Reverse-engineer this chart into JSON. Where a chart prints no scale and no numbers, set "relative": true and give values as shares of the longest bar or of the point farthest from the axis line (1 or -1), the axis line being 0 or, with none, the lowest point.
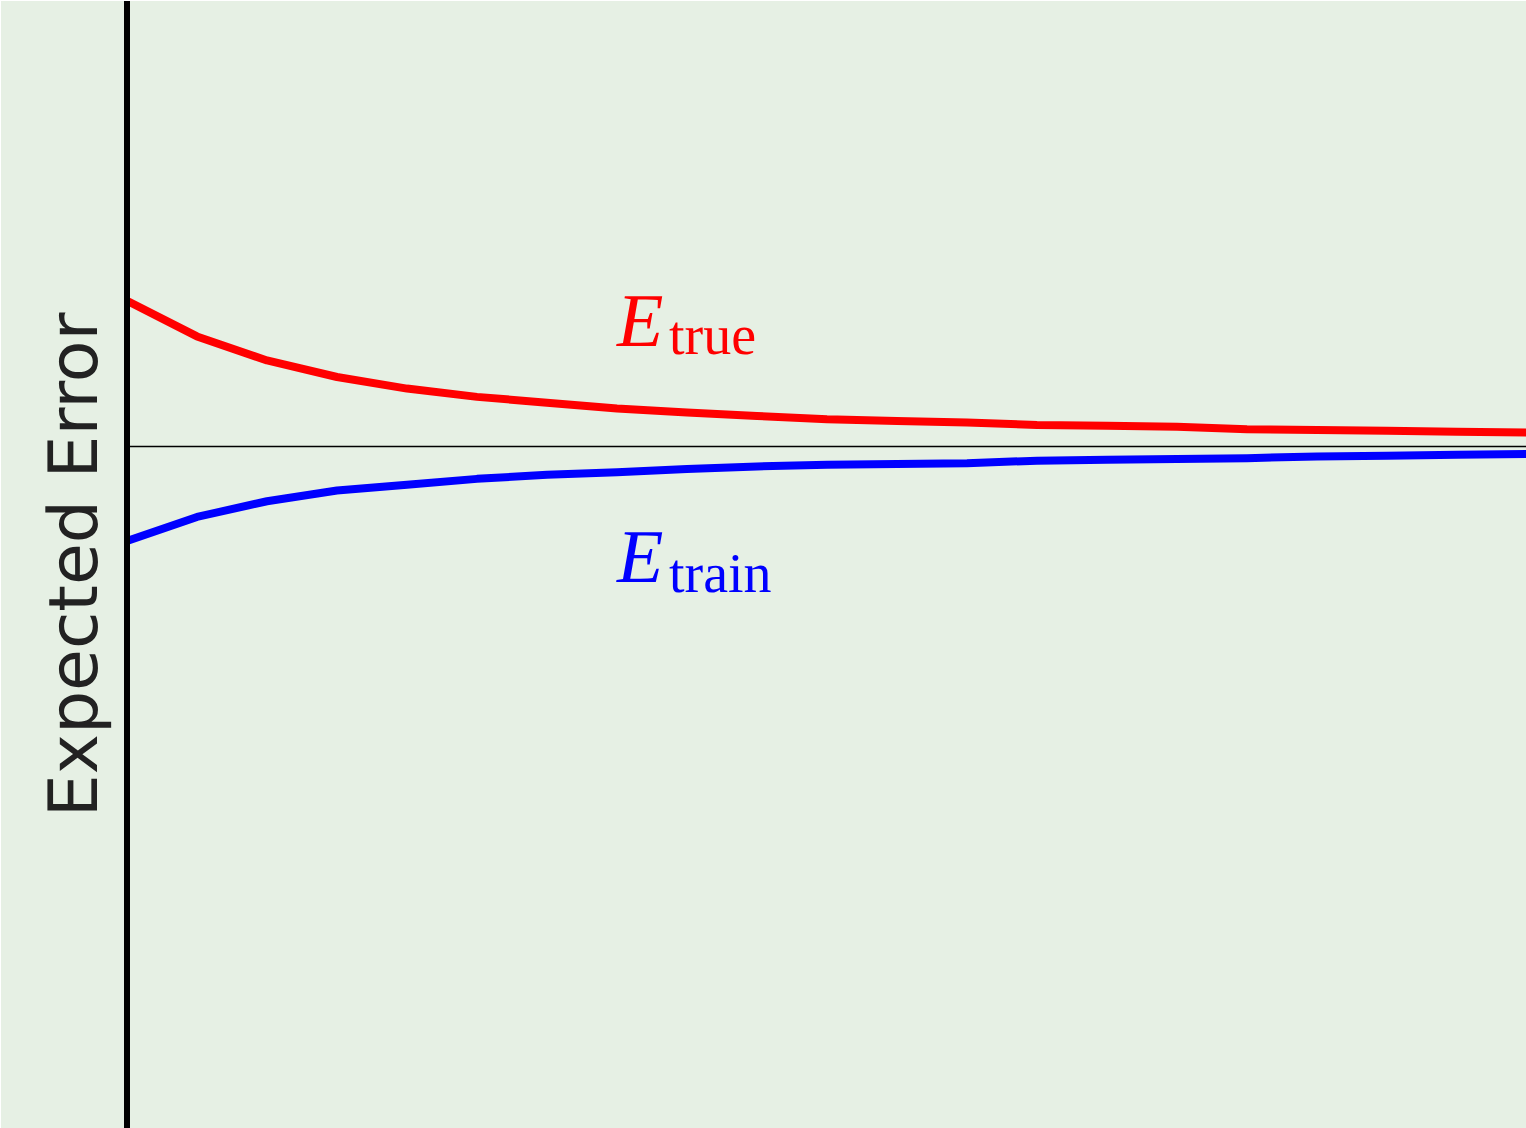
{
  "chart_data": {
    "type": "line",
    "relative": true,
    "ylabel": "Expected Error",
    "categories": [
      null,
      null,
      null,
      null,
      null,
      null,
      null,
      null,
      null,
      null,
      null,
      null,
      null,
      null,
      null,
      null,
      null,
      null,
      null,
      null,
      null
    ],
    "series": [
      {
        "name": "E$_{true}$",
        "color": "#ff0000",
        "values": [
          1,
          0.957,
          0.928,
          0.908,
          0.894,
          0.884,
          0.877,
          0.87,
          0.865,
          0.861,
          0.857,
          0.855,
          0.853,
          0.85,
          0.849,
          0.848,
          0.845,
          0.844,
          0.843,
          0.842,
          0.841
        ]
      },
      {
        "name": "E$_{train}$",
        "color": "#0000ff",
        "values": [
          0.71,
          0.739,
          0.758,
          0.771,
          0.778,
          0.785,
          0.79,
          0.793,
          0.797,
          0.8,
          0.802,
          0.803,
          0.804,
          0.807,
          0.808,
          0.809,
          0.81,
          0.812,
          0.813,
          0.814,
          0.815
        ]
      }
    ],
    "ref_lines": [
      {
        "axis": "y",
        "value": 0.824,
        "color": "#000000"
      }
    ],
    "grid": false,
    "marker": "none",
    "line_style": "solid",
    "tick_labels": false
  }
}
